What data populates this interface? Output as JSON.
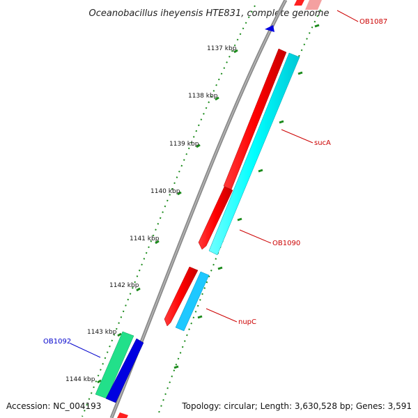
{
  "title": "Oceanobacillus iheyensis HTE831, complete genome",
  "accession": "Accession: NC_004193",
  "summary": "Topology: circular; Length: 3,630,528 bp; Genes: 3,591",
  "ticks": [
    {
      "label": "1137 kbp"
    },
    {
      "label": "1138 kbp"
    },
    {
      "label": "1139 kbp"
    },
    {
      "label": "1140 kbp"
    },
    {
      "label": "1141 kbp"
    },
    {
      "label": "1142 kbp"
    },
    {
      "label": "1143 kbp"
    },
    {
      "label": "1144 kbp"
    }
  ],
  "gene_labels": [
    {
      "text": "OB1087",
      "color": "#cc0000"
    },
    {
      "text": "sucA",
      "color": "#cc0000"
    },
    {
      "text": "OB1090",
      "color": "#cc0000"
    },
    {
      "text": "nupC",
      "color": "#cc0000"
    },
    {
      "text": "OB1092",
      "color": "#0000cc"
    }
  ],
  "colors": {
    "backbone": "#7a7a7a",
    "forward_cds": "#ff0000",
    "reverse_cds_a": "#00ffff",
    "reverse_cds_b": "#1ec8ff",
    "green_feature": "#22e08a",
    "blue_feature": "#0000e0",
    "tick_marks": "#1a8a1a"
  }
}
